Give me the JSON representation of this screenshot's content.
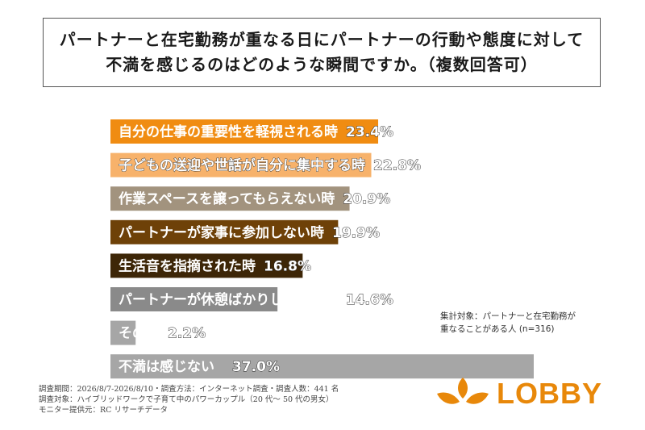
{
  "header": {
    "title_line1": "パートナーと在宅勤務が重なる日にパートナーの行動や態度に対して",
    "title_line2": "不満を感じるのはどのような瞬間ですか。（複数回答可）"
  },
  "chart_data": {
    "type": "bar",
    "orientation": "horizontal",
    "categories": [
      "自分の仕事の重要性を軽視される時",
      "子どもの送迎や世話が自分に集中する時",
      "作業スペースを譲ってもらえない時",
      "パートナーが家事に参加しない時",
      "生活音を指摘された時",
      "パートナーが休憩ばかりしている時",
      "その他",
      "不満は感じない"
    ],
    "values": [
      23.4,
      22.8,
      20.9,
      19.9,
      16.8,
      14.6,
      2.2,
      37.0
    ],
    "value_labels": [
      "23.4%",
      "22.8%",
      "20.9%",
      "19.9%",
      "16.8%",
      "14.6%",
      "2.2%",
      "37.0%"
    ],
    "unit": "%",
    "colors": [
      "#f08c12",
      "#f7b26b",
      "#a2937e",
      "#6e4108",
      "#3d2607",
      "#8a8a8a",
      "#a6a6a6",
      "#a6a6a6"
    ],
    "xlim": [
      0,
      37.0
    ],
    "grid": false,
    "legend": "none"
  },
  "note": {
    "line1": "集計対象：パートナーと在宅勤務が",
    "line2": "重なることがある人 (n=316)"
  },
  "footer": {
    "line1": "調査期間：2026/8/7-2026/8/10・調査方法：インターネット調査・調査人数：441 名",
    "line2": "調査対象：ハイブリッドワークで子育て中のパワーカップル（20 代～ 50 代の男女）",
    "line3": "モニター提供元：RC リサーチデータ"
  },
  "logo": {
    "text": "LOBBY",
    "color": "#e8880a"
  }
}
